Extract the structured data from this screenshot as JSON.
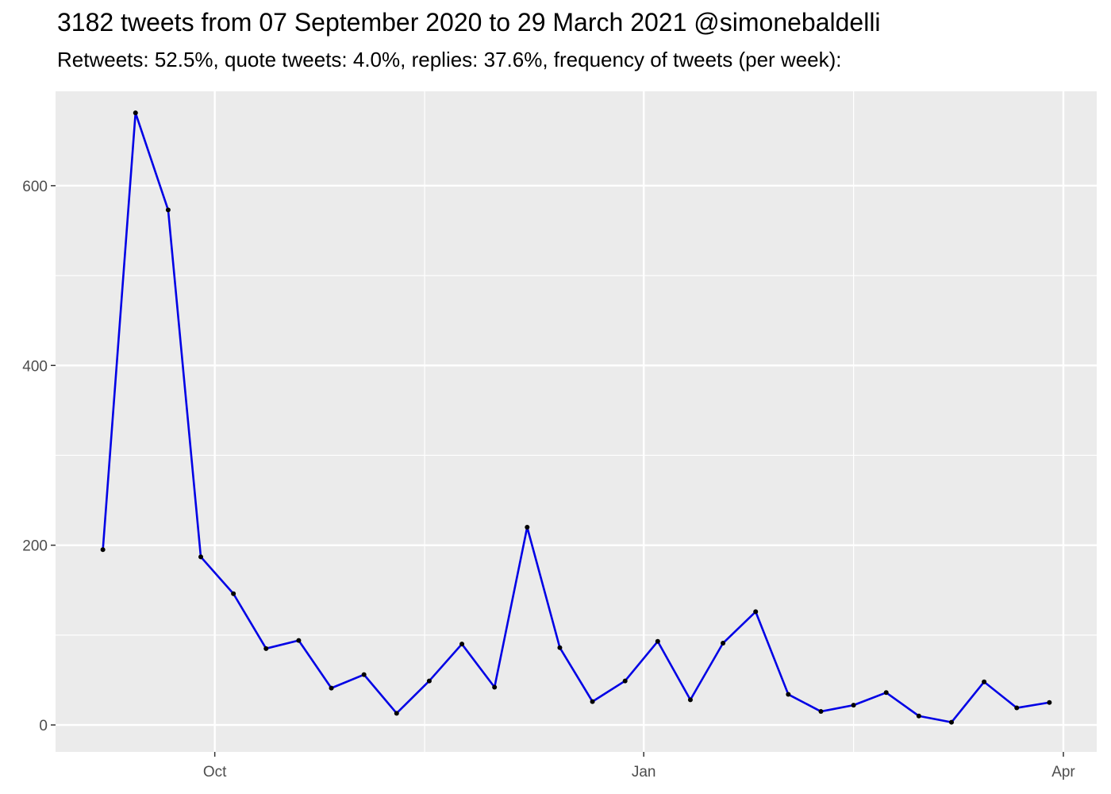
{
  "chart_data": {
    "type": "line",
    "title": "3182 tweets from 07 September 2020 to 29 March 2021 @simonebaldelli",
    "subtitle": "Retweets: 52.5%, quote tweets: 4.0%, replies: 37.6%, frequency of tweets (per week):",
    "xlabel": "",
    "ylabel": "",
    "x_axis": {
      "type": "date",
      "range": [
        "2020-09-01",
        "2021-04-01"
      ],
      "ticks": [
        {
          "date": "2020-10-01",
          "label": "Oct"
        },
        {
          "date": "2021-01-01",
          "label": "Jan"
        },
        {
          "date": "2021-04-01",
          "label": "Apr"
        }
      ],
      "minor_gridlines": [
        "2020-11-15",
        "2021-02-15"
      ]
    },
    "y_axis": {
      "range": [
        -30,
        705
      ],
      "ticks": [
        0,
        200,
        400,
        600
      ],
      "minor_gridlines": [
        100,
        300,
        500
      ]
    },
    "grid": true,
    "legend": "none",
    "colors": {
      "line": "#0000e5",
      "points": "#000000",
      "panel": "#ebebeb",
      "grid": "#ffffff",
      "tick_text": "#4d4d4d"
    },
    "series": [
      {
        "x": [
          "2020-09-07",
          "2020-09-14",
          "2020-09-21",
          "2020-09-28",
          "2020-10-05",
          "2020-10-12",
          "2020-10-19",
          "2020-10-26",
          "2020-11-02",
          "2020-11-09",
          "2020-11-16",
          "2020-11-23",
          "2020-11-30",
          "2020-12-07",
          "2020-12-14",
          "2020-12-21",
          "2020-12-28",
          "2021-01-04",
          "2021-01-11",
          "2021-01-18",
          "2021-01-25",
          "2021-02-01",
          "2021-02-08",
          "2021-02-15",
          "2021-02-22",
          "2021-03-01",
          "2021-03-08",
          "2021-03-15",
          "2021-03-22",
          "2021-03-29"
        ],
        "y": [
          195,
          681,
          573,
          187,
          146,
          85,
          94,
          41,
          56,
          13,
          49,
          90,
          42,
          220,
          86,
          26,
          49,
          93,
          28,
          91,
          126,
          34,
          15,
          22,
          36,
          10,
          3,
          48,
          19,
          25
        ]
      }
    ]
  }
}
